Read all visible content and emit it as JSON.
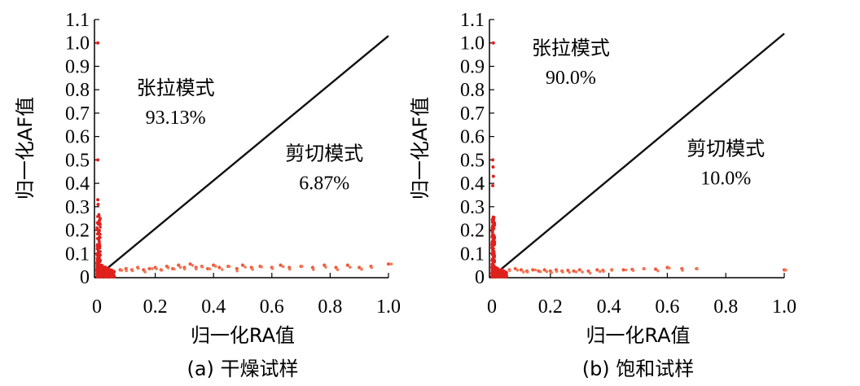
{
  "chart_data": [
    {
      "type": "scatter",
      "caption": "(a) 干燥试样",
      "xlabel": "归一化RA值",
      "ylabel": "归一化AF值",
      "xlim": [
        0,
        1.0
      ],
      "ylim": [
        0,
        1.1
      ],
      "xticks": [
        "0",
        "0.2",
        "0.4",
        "0.6",
        "0.8",
        "1.0"
      ],
      "yticks": [
        "0",
        "0.1",
        "0.2",
        "0.3",
        "0.4",
        "0.5",
        "0.6",
        "0.7",
        "0.8",
        "0.9",
        "1.0",
        "1.1"
      ],
      "annotations": [
        {
          "label": "张拉模式",
          "value": "93.13%",
          "x": 0.27,
          "y": 0.78
        },
        {
          "label": "剪切模式",
          "value": "6.87%",
          "x": 0.78,
          "y": 0.5
        }
      ],
      "line": {
        "x": [
          0,
          1.0
        ],
        "y": [
          0,
          1.03
        ]
      },
      "marker_color": "#e0201c",
      "points": {
        "isolated": [
          [
            0.003,
            1.0
          ],
          [
            0.003,
            0.5
          ],
          [
            0.003,
            0.33
          ],
          [
            0.004,
            0.31
          ]
        ],
        "vertical_cluster": {
          "x_range": [
            0.0,
            0.012
          ],
          "y_range": [
            0.0,
            0.28
          ]
        },
        "near_origin_cluster": {
          "x_range": [
            0.0,
            0.06
          ],
          "y_range": [
            0.0,
            0.06
          ]
        },
        "tail": [
          [
            0.08,
            0.03
          ],
          [
            0.1,
            0.035
          ],
          [
            0.12,
            0.03
          ],
          [
            0.14,
            0.04
          ],
          [
            0.16,
            0.03
          ],
          [
            0.18,
            0.035
          ],
          [
            0.2,
            0.04
          ],
          [
            0.22,
            0.03
          ],
          [
            0.24,
            0.045
          ],
          [
            0.26,
            0.035
          ],
          [
            0.28,
            0.05
          ],
          [
            0.3,
            0.04
          ],
          [
            0.32,
            0.055
          ],
          [
            0.34,
            0.04
          ],
          [
            0.36,
            0.045
          ],
          [
            0.38,
            0.035
          ],
          [
            0.4,
            0.05
          ],
          [
            0.42,
            0.04
          ],
          [
            0.45,
            0.045
          ],
          [
            0.48,
            0.035
          ],
          [
            0.5,
            0.05
          ],
          [
            0.53,
            0.04
          ],
          [
            0.56,
            0.045
          ],
          [
            0.6,
            0.04
          ],
          [
            0.63,
            0.05
          ],
          [
            0.66,
            0.04
          ],
          [
            0.7,
            0.045
          ],
          [
            0.74,
            0.04
          ],
          [
            0.78,
            0.05
          ],
          [
            0.82,
            0.04
          ],
          [
            0.86,
            0.05
          ],
          [
            0.9,
            0.04
          ],
          [
            0.94,
            0.045
          ],
          [
            1.0,
            0.055
          ]
        ]
      }
    },
    {
      "type": "scatter",
      "caption": "(b) 饱和试样",
      "xlabel": "归一化RA值",
      "ylabel": "归一化AF值",
      "xlim": [
        0,
        1.0
      ],
      "ylim": [
        0,
        1.1
      ],
      "xticks": [
        "0",
        "0.2",
        "0.4",
        "0.6",
        "0.8",
        "1.0"
      ],
      "yticks": [
        "0",
        "0.1",
        "0.2",
        "0.3",
        "0.4",
        "0.5",
        "0.6",
        "0.7",
        "0.8",
        "0.9",
        "1.0",
        "1.1"
      ],
      "annotations": [
        {
          "label": "张拉模式",
          "value": "90.0%",
          "x": 0.27,
          "y": 0.95
        },
        {
          "label": "剪切模式",
          "value": "10.0%",
          "x": 0.8,
          "y": 0.52
        }
      ],
      "line": {
        "x": [
          0,
          1.0
        ],
        "y": [
          0,
          1.04
        ]
      },
      "marker_color": "#e0201c",
      "points": {
        "isolated": [
          [
            0.005,
            1.0
          ],
          [
            0.003,
            0.5
          ],
          [
            0.004,
            0.47
          ],
          [
            0.005,
            0.43
          ],
          [
            0.003,
            0.39
          ]
        ],
        "vertical_cluster": {
          "x_range": [
            0.0,
            0.01
          ],
          "y_range": [
            0.0,
            0.26
          ]
        },
        "near_origin_cluster": {
          "x_range": [
            0.0,
            0.05
          ],
          "y_range": [
            0.0,
            0.05
          ]
        },
        "tail": [
          [
            0.06,
            0.03
          ],
          [
            0.08,
            0.035
          ],
          [
            0.1,
            0.03
          ],
          [
            0.12,
            0.025
          ],
          [
            0.14,
            0.03
          ],
          [
            0.16,
            0.025
          ],
          [
            0.18,
            0.03
          ],
          [
            0.2,
            0.025
          ],
          [
            0.22,
            0.03
          ],
          [
            0.24,
            0.025
          ],
          [
            0.26,
            0.028
          ],
          [
            0.28,
            0.025
          ],
          [
            0.3,
            0.03
          ],
          [
            0.33,
            0.025
          ],
          [
            0.36,
            0.03
          ],
          [
            0.38,
            0.028
          ],
          [
            0.41,
            0.03
          ],
          [
            0.45,
            0.03
          ],
          [
            0.48,
            0.032
          ],
          [
            0.52,
            0.035
          ],
          [
            0.56,
            0.033
          ],
          [
            0.6,
            0.04
          ],
          [
            0.65,
            0.035
          ],
          [
            0.7,
            0.035
          ],
          [
            1.0,
            0.03
          ]
        ]
      }
    }
  ]
}
